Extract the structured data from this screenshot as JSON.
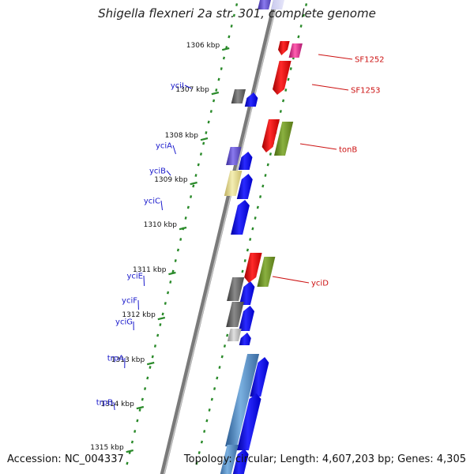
{
  "title": "Shigella flexneri 2a str. 301, complete genome",
  "footer": {
    "accession": "Accession: NC_004337",
    "topology": "Topology: circular; Length: 4,607,203 bp; Genes: 4,305"
  },
  "ticks": [
    "1306 kbp",
    "1307 kbp",
    "1308 kbp",
    "1309 kbp",
    "1310 kbp",
    "1311 kbp",
    "1312 kbp",
    "1313 kbp",
    "1314 kbp",
    "1315 kbp"
  ],
  "genes_left": [
    {
      "name": "yciI",
      "color": "#1a1acc"
    },
    {
      "name": "yciA",
      "color": "#1a1acc"
    },
    {
      "name": "yciB",
      "color": "#1a1acc"
    },
    {
      "name": "yciC",
      "color": "#1a1acc"
    },
    {
      "name": "yciE",
      "color": "#1a1acc"
    },
    {
      "name": "yciF",
      "color": "#1a1acc"
    },
    {
      "name": "yciG",
      "color": "#1a1acc"
    },
    {
      "name": "trpA",
      "color": "#1a1acc"
    },
    {
      "name": "trpB",
      "color": "#1a1acc"
    }
  ],
  "genes_right": [
    {
      "name": "SF1252",
      "color": "#cc1111"
    },
    {
      "name": "SF1253",
      "color": "#cc1111"
    },
    {
      "name": "tonB",
      "color": "#cc1111"
    },
    {
      "name": "yciD",
      "color": "#cc1111"
    }
  ],
  "colors": {
    "backbone": "#8a8a8a",
    "dots": "#2a8a2a",
    "forward_gene": "#0000ee",
    "reverse_gene": "#ee0000",
    "reverse_cog": "#6a8a2a",
    "cog_gray": "#666666",
    "cog_purple": "#6a5acd",
    "cog_yellow": "#e8dc8a",
    "cog_steel": "#4a8ac0",
    "cog_magenta": "#e0208a"
  }
}
